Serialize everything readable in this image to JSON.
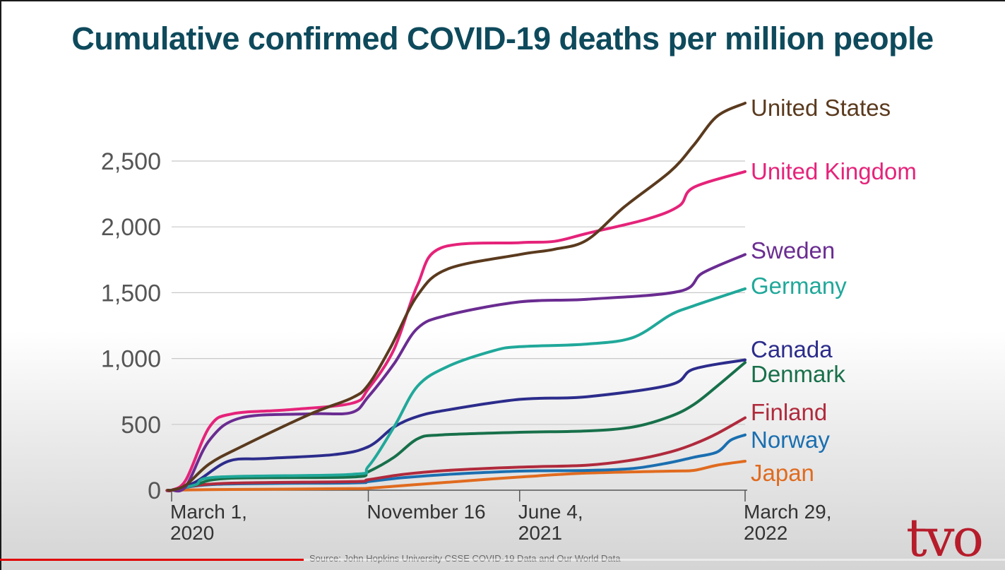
{
  "chart_data": {
    "type": "line",
    "title": "Cumulative confirmed COVID-19 deaths per million people",
    "ylim": [
      0,
      2950
    ],
    "yticks": [
      0,
      500,
      1000,
      1500,
      2000,
      2500
    ],
    "ytick_labels": [
      "0",
      "500",
      "1,000",
      "1,500",
      "2,000",
      "2,500"
    ],
    "xlim": [
      "2020-02-20",
      "2022-03-29"
    ],
    "xticks": [
      {
        "date": "2020-03-01",
        "label": [
          "March 1,",
          "2020"
        ]
      },
      {
        "date": "2020-11-16",
        "label": [
          "November 16",
          ""
        ]
      },
      {
        "date": "2021-06-04",
        "label": [
          "June 4,",
          "2021"
        ]
      },
      {
        "date": "2022-03-29",
        "label": [
          "March 29,",
          "2022"
        ]
      }
    ],
    "grid": true,
    "legend": "direct labels at line ends",
    "series": [
      {
        "name": "United States",
        "color": "#5a3a1e",
        "x": [
          "2020-02-20",
          "2020-03-01",
          "2020-03-20",
          "2020-04-20",
          "2020-06-01",
          "2020-09-01",
          "2020-10-25",
          "2020-11-16",
          "2020-12-15",
          "2021-01-20",
          "2021-03-01",
          "2021-06-04",
          "2021-07-20",
          "2021-09-01",
          "2021-10-20",
          "2021-12-20",
          "2022-01-20",
          "2022-02-20",
          "2022-03-29"
        ],
        "y": [
          0,
          0,
          40,
          200,
          330,
          580,
          700,
          800,
          1080,
          1480,
          1680,
          1790,
          1830,
          1900,
          2150,
          2420,
          2620,
          2840,
          2940
        ]
      },
      {
        "name": "United Kingdom",
        "color": "#e5237a",
        "x": [
          "2020-02-20",
          "2020-03-01",
          "2020-03-20",
          "2020-04-20",
          "2020-05-20",
          "2020-08-01",
          "2020-10-25",
          "2020-11-16",
          "2020-12-20",
          "2021-01-20",
          "2021-02-20",
          "2021-06-04",
          "2021-07-20",
          "2021-09-01",
          "2021-11-20",
          "2022-01-01",
          "2022-01-20",
          "2022-03-29"
        ],
        "y": [
          0,
          0,
          80,
          480,
          580,
          610,
          660,
          770,
          1070,
          1560,
          1840,
          1880,
          1890,
          1950,
          2060,
          2160,
          2300,
          2420
        ]
      },
      {
        "name": "Sweden",
        "color": "#6a2c91",
        "x": [
          "2020-02-20",
          "2020-03-01",
          "2020-03-20",
          "2020-04-20",
          "2020-06-01",
          "2020-09-01",
          "2020-10-25",
          "2020-11-16",
          "2020-12-20",
          "2021-01-20",
          "2021-03-01",
          "2021-06-04",
          "2021-09-01",
          "2022-01-01",
          "2022-02-01",
          "2022-03-29"
        ],
        "y": [
          0,
          0,
          30,
          380,
          550,
          580,
          590,
          710,
          960,
          1230,
          1330,
          1430,
          1450,
          1510,
          1650,
          1790
        ]
      },
      {
        "name": "Germany",
        "color": "#20a89a",
        "x": [
          "2020-02-20",
          "2020-03-01",
          "2020-04-01",
          "2020-05-01",
          "2020-10-25",
          "2020-11-16",
          "2020-12-20",
          "2021-01-20",
          "2021-03-01",
          "2021-05-01",
          "2021-06-04",
          "2021-09-01",
          "2021-11-01",
          "2021-12-20",
          "2022-01-20",
          "2022-03-29"
        ],
        "y": [
          0,
          0,
          40,
          100,
          120,
          180,
          480,
          790,
          940,
          1060,
          1090,
          1110,
          1160,
          1330,
          1400,
          1530
        ]
      },
      {
        "name": "Canada",
        "color": "#2c2c8c",
        "x": [
          "2020-02-20",
          "2020-03-01",
          "2020-04-01",
          "2020-05-15",
          "2020-07-01",
          "2020-10-01",
          "2020-11-16",
          "2020-12-20",
          "2021-01-20",
          "2021-03-01",
          "2021-06-04",
          "2021-09-01",
          "2021-12-20",
          "2022-01-20",
          "2022-03-29"
        ],
        "y": [
          0,
          0,
          60,
          220,
          240,
          270,
          330,
          480,
          560,
          610,
          690,
          710,
          800,
          920,
          990
        ]
      },
      {
        "name": "Denmark",
        "color": "#17704a",
        "x": [
          "2020-02-20",
          "2020-03-01",
          "2020-04-01",
          "2020-05-15",
          "2020-10-25",
          "2020-11-16",
          "2020-12-20",
          "2021-01-20",
          "2021-02-20",
          "2021-06-04",
          "2021-09-01",
          "2021-11-01",
          "2021-12-20",
          "2022-01-20",
          "2022-02-20",
          "2022-03-29"
        ],
        "y": [
          0,
          0,
          40,
          90,
          100,
          140,
          250,
          390,
          420,
          440,
          450,
          480,
          560,
          650,
          790,
          970
        ]
      },
      {
        "name": "Finland",
        "color": "#b02a3c",
        "x": [
          "2020-02-20",
          "2020-03-01",
          "2020-05-01",
          "2020-10-25",
          "2020-11-16",
          "2021-01-01",
          "2021-03-01",
          "2021-06-04",
          "2021-09-01",
          "2021-11-01",
          "2021-12-20",
          "2022-01-20",
          "2022-02-20",
          "2022-03-29"
        ],
        "y": [
          0,
          0,
          50,
          65,
          80,
          120,
          150,
          175,
          190,
          230,
          290,
          350,
          430,
          550
        ]
      },
      {
        "name": "Norway",
        "color": "#1a6fb0",
        "x": [
          "2020-02-20",
          "2020-03-01",
          "2020-05-01",
          "2020-10-25",
          "2020-11-16",
          "2021-01-01",
          "2021-03-01",
          "2021-06-04",
          "2021-09-01",
          "2021-11-01",
          "2021-12-20",
          "2022-01-20",
          "2022-02-20",
          "2022-03-10",
          "2022-03-29"
        ],
        "y": [
          0,
          0,
          45,
          55,
          65,
          95,
          120,
          145,
          150,
          165,
          210,
          250,
          290,
          380,
          420
        ]
      },
      {
        "name": "Japan",
        "color": "#e06b1f",
        "x": [
          "2020-02-20",
          "2020-03-01",
          "2020-05-01",
          "2020-10-25",
          "2020-11-16",
          "2021-01-01",
          "2021-03-01",
          "2021-06-04",
          "2021-09-01",
          "2021-12-20",
          "2022-01-20",
          "2022-02-20",
          "2022-03-29"
        ],
        "y": [
          0,
          0,
          5,
          12,
          15,
          35,
          60,
          100,
          130,
          145,
          150,
          190,
          220
        ]
      }
    ]
  },
  "source": "Source: John Hopkins University CSSE COVID-19 Data and Our World Data",
  "logo": "tvo"
}
